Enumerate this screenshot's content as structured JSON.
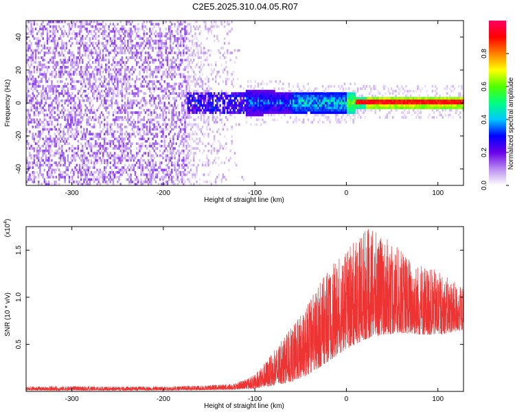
{
  "title": "C2E5.2025.310.04.05.R07",
  "chart_data": [
    {
      "type": "heatmap",
      "xlabel": "Height of straight line (km)",
      "ylabel": "Frequency (Hz)",
      "xlim": [
        -350,
        128
      ],
      "ylim": [
        -50,
        50
      ],
      "xticks": [
        -300,
        -200,
        -100,
        0,
        100
      ],
      "yticks": [
        -40,
        -20,
        0,
        20,
        40
      ],
      "colorbar": {
        "label": "Normalized spectral amplitude",
        "range": [
          0,
          1
        ],
        "ticks": [
          "0.0",
          "0.2",
          "0.4",
          "0.6",
          "0.8"
        ],
        "colors": [
          "#ffffff",
          "#b98cf0",
          "#6a00e8",
          "#0000ff",
          "#00c8ff",
          "#00ff80",
          "#50ff00",
          "#ffff00",
          "#ff8000",
          "#ff0000",
          "#ff0060"
        ]
      },
      "grid": false
    },
    {
      "type": "line",
      "xlabel": "Height of straight line (km)",
      "ylabel": "SNR (10 * v/v)",
      "multiplier_label": "(x10",
      "multiplier_exp": "4",
      "multiplier_close": ")",
      "xlim": [
        -350,
        128
      ],
      "ylim": [
        0,
        17500
      ],
      "xticks": [
        -300,
        -200,
        -100,
        0,
        100
      ],
      "yticks": [
        "0.5",
        "1.0",
        "1.5"
      ],
      "ytick_values": [
        5000,
        10000,
        15000
      ],
      "color": "#ee3333",
      "envelope": {
        "x": [
          -350,
          -300,
          -250,
          -200,
          -150,
          -120,
          -100,
          -80,
          -60,
          -45,
          -30,
          -15,
          0,
          20,
          40,
          60,
          80,
          100,
          128
        ],
        "max": [
          500,
          550,
          500,
          520,
          650,
          900,
          1800,
          4200,
          6800,
          8800,
          11500,
          13500,
          14800,
          17500,
          16500,
          15000,
          13500,
          12800,
          11000
        ],
        "min": [
          100,
          100,
          100,
          120,
          150,
          200,
          300,
          600,
          1000,
          1600,
          2500,
          3500,
          4500,
          5500,
          6000,
          6200,
          6000,
          6000,
          6500
        ]
      },
      "grid": false
    }
  ]
}
